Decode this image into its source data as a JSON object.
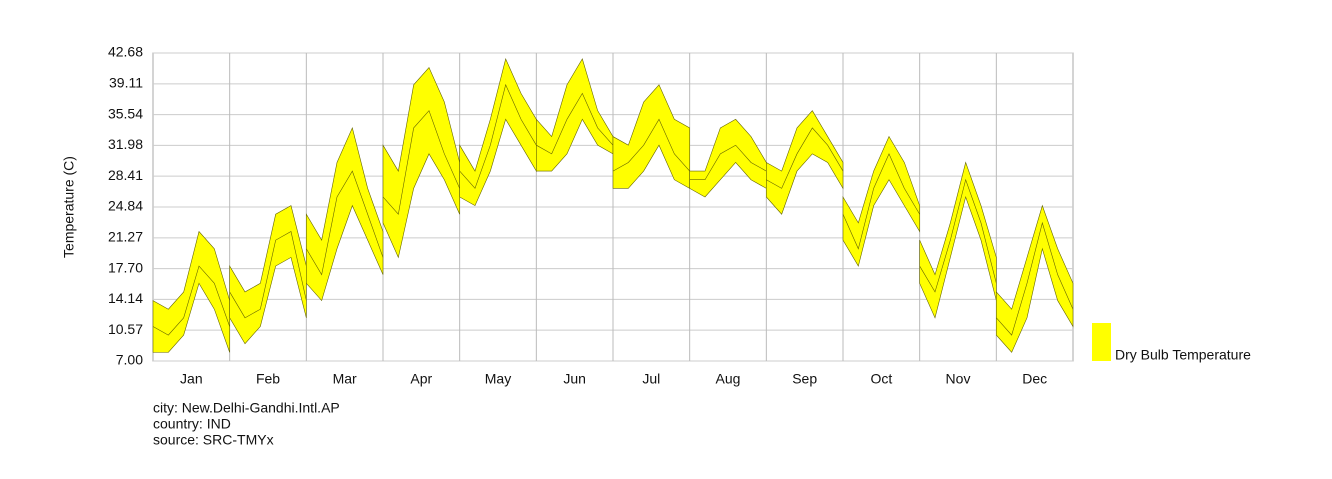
{
  "chart_data": {
    "type": "band",
    "ylabel": "Temperature (C)",
    "categories": [
      "Jan",
      "Feb",
      "Mar",
      "Apr",
      "May",
      "Jun",
      "Jul",
      "Aug",
      "Sep",
      "Oct",
      "Nov",
      "Dec"
    ],
    "ylim": [
      7,
      42.68
    ],
    "yticks": [
      {
        "value": 7,
        "label": "7.00"
      },
      10.57,
      14.14,
      {
        "value": 17.7,
        "label": "17.70"
      },
      21.27,
      24.84,
      28.41,
      31.98,
      35.54,
      39.11,
      42.68
    ],
    "grid": true,
    "series": [
      {
        "name": "Dry Bulb Temperature",
        "color": "#ffff00",
        "edge": "#666600",
        "high": [
          [
            14,
            13,
            15,
            22,
            20,
            14
          ],
          [
            18,
            15,
            16,
            24,
            25,
            18
          ],
          [
            24,
            21,
            30,
            34,
            27,
            22
          ],
          [
            32,
            29,
            39,
            41,
            37,
            30
          ],
          [
            32,
            29,
            35,
            42,
            38,
            35
          ],
          [
            35,
            33,
            39,
            42,
            36,
            33
          ],
          [
            33,
            32,
            37,
            39,
            35,
            34
          ],
          [
            29,
            29,
            34,
            35,
            33,
            30
          ],
          [
            30,
            29,
            34,
            36,
            33,
            30
          ],
          [
            26,
            23,
            29,
            33,
            30,
            25
          ],
          [
            21,
            17,
            23,
            30,
            25,
            19
          ],
          [
            15,
            13,
            19,
            25,
            20,
            16
          ]
        ],
        "low": [
          [
            8,
            8,
            10,
            16,
            13,
            8
          ],
          [
            12,
            9,
            11,
            18,
            19,
            12
          ],
          [
            16,
            14,
            20,
            25,
            21,
            17
          ],
          [
            23,
            19,
            27,
            31,
            28,
            24
          ],
          [
            26,
            25,
            29,
            35,
            32,
            29
          ],
          [
            29,
            29,
            31,
            35,
            32,
            31
          ],
          [
            27,
            27,
            29,
            32,
            28,
            27
          ],
          [
            27,
            26,
            28,
            30,
            28,
            27
          ],
          [
            26,
            24,
            29,
            31,
            30,
            27
          ],
          [
            21,
            18,
            25,
            28,
            25,
            22
          ],
          [
            16,
            12,
            19,
            26,
            21,
            14
          ],
          [
            10,
            8,
            12,
            20,
            14,
            11
          ]
        ],
        "mean": [
          [
            11,
            10,
            12,
            18,
            16,
            11
          ],
          [
            15,
            12,
            13,
            21,
            22,
            14
          ],
          [
            20,
            17,
            26,
            29,
            24,
            19
          ],
          [
            26,
            24,
            34,
            36,
            31,
            27
          ],
          [
            29,
            27,
            32,
            39,
            35,
            32
          ],
          [
            32,
            31,
            35,
            38,
            34,
            32
          ],
          [
            29,
            30,
            32,
            35,
            31,
            29
          ],
          [
            28,
            28,
            31,
            32,
            30,
            29
          ],
          [
            28,
            27,
            31,
            34,
            32,
            29
          ],
          [
            24,
            20,
            27,
            31,
            27,
            24
          ],
          [
            18,
            15,
            21,
            28,
            23,
            16
          ],
          [
            12,
            10,
            16,
            23,
            17,
            13
          ]
        ]
      }
    ],
    "notes": [
      "city: New.Delhi-Gandhi.Intl.AP",
      "country: IND",
      "source: SRC-TMYx"
    ]
  }
}
